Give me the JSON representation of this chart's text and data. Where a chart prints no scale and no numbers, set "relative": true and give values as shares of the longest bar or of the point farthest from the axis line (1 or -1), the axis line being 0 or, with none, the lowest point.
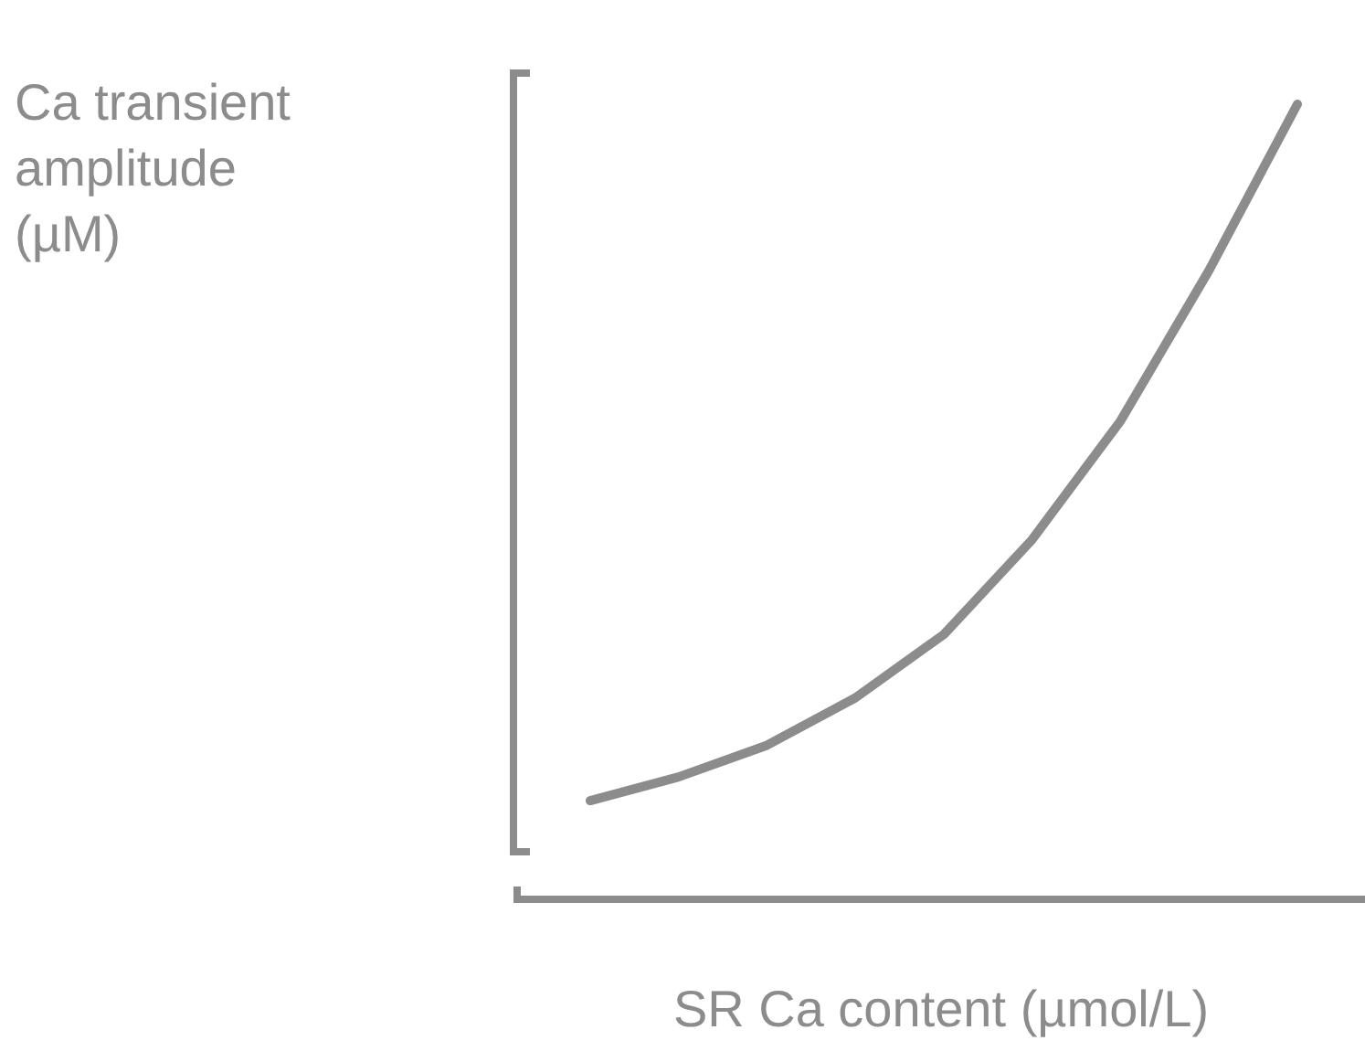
{
  "chart_data": {
    "type": "line",
    "relative": true,
    "ylabel": "Ca transient\namplitude\n(µM)",
    "xlabel": "SR Ca content (µmol/L)",
    "categories": [
      null,
      null,
      null,
      null,
      null,
      null,
      null,
      null,
      null
    ],
    "series": [
      {
        "color": "#8c8c8c",
        "values": [
          0.12,
          0.15,
          0.19,
          0.25,
          0.33,
          0.45,
          0.6,
          0.79,
          1
        ]
      }
    ],
    "marker": "none",
    "line_style": "solid",
    "grid": false
  }
}
